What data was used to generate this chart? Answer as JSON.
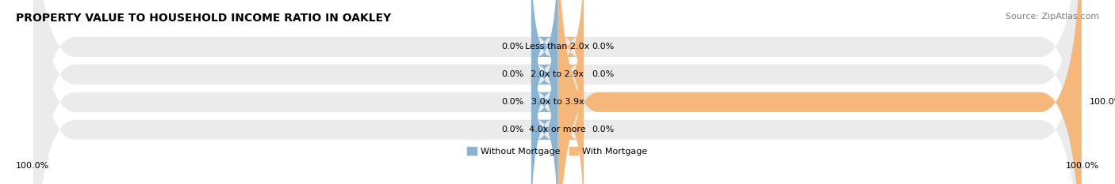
{
  "title": "PROPERTY VALUE TO HOUSEHOLD INCOME RATIO IN OAKLEY",
  "source": "Source: ZipAtlas.com",
  "categories": [
    "Less than 2.0x",
    "2.0x to 2.9x",
    "3.0x to 3.9x",
    "4.0x or more"
  ],
  "without_mortgage": [
    0.0,
    0.0,
    0.0,
    0.0
  ],
  "with_mortgage": [
    0.0,
    0.0,
    100.0,
    0.0
  ],
  "color_without": "#8AB4D4",
  "color_with": "#F5B87A",
  "bar_bg_color": "#EBEBEB",
  "bar_sep_color": "#FFFFFF",
  "title_fontsize": 10,
  "source_fontsize": 8,
  "label_fontsize": 8,
  "cat_fontsize": 8,
  "legend_labels": [
    "Without Mortgage",
    "With Mortgage"
  ],
  "left_axis_label": "100.0%",
  "right_axis_label": "100.0%",
  "stub_size": 5.0,
  "full_size": 100.0
}
